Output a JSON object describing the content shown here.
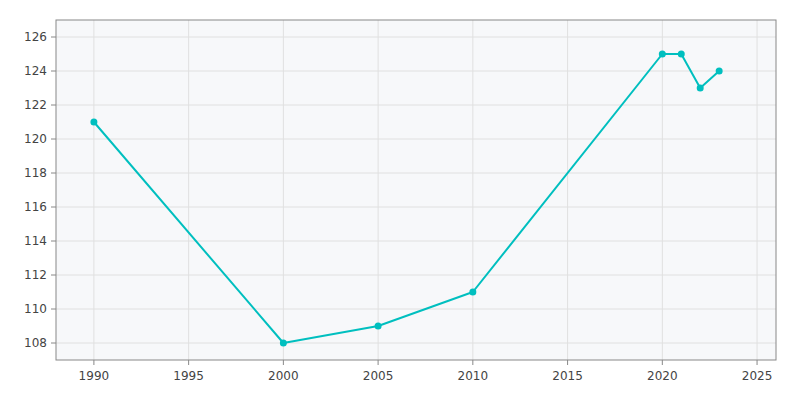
{
  "chart_data": {
    "type": "line",
    "x": [
      1990,
      2000,
      2005,
      2010,
      2020,
      2021,
      2022,
      2023
    ],
    "values": [
      121,
      108,
      109,
      111,
      125,
      125,
      123,
      124
    ],
    "color": "#00BFBF",
    "marker": "circle",
    "xlim": [
      1988,
      2026
    ],
    "xticks": [
      1990,
      1995,
      2000,
      2005,
      2010,
      2015,
      2020,
      2025
    ],
    "ylim": [
      107,
      127
    ],
    "yticks": [
      108,
      110,
      112,
      114,
      116,
      118,
      120,
      122,
      124,
      126
    ],
    "grid": true
  }
}
